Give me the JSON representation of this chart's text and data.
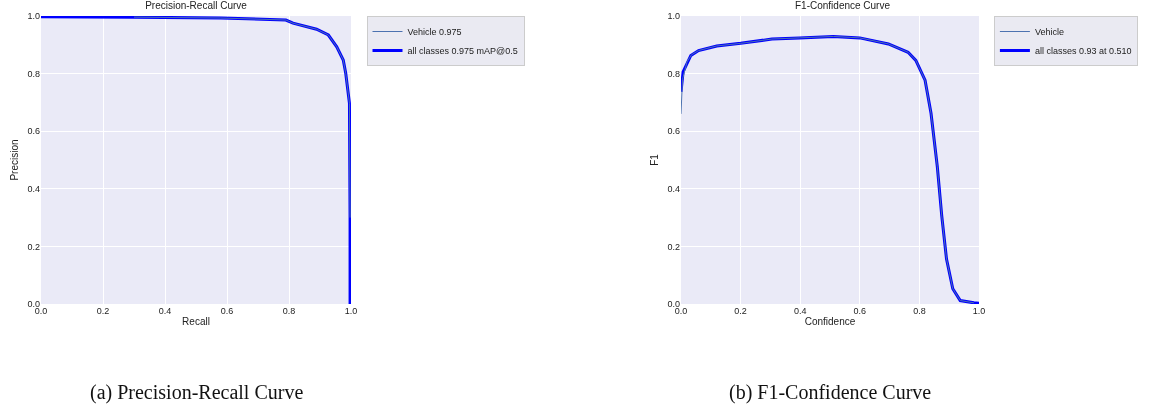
{
  "chart_data": [
    {
      "type": "line",
      "title": "Precision-Recall Curve",
      "xlabel": "Recall",
      "ylabel": "Precision",
      "annotations": [
        "(a) Precision-Recall Curve"
      ],
      "xlim": [
        0,
        1
      ],
      "ylim": [
        0,
        1
      ],
      "xticks": [
        {
          "value": 0,
          "label": "0.0"
        },
        {
          "value": 0.2,
          "label": "0.2"
        },
        {
          "value": 0.4,
          "label": "0.4"
        },
        {
          "value": 0.6,
          "label": "0.6"
        },
        {
          "value": 0.8,
          "label": "0.8"
        },
        {
          "value": 1,
          "label": "1.0"
        }
      ],
      "yticks": [
        {
          "value": 0,
          "label": "0.0"
        },
        {
          "value": 0.2,
          "label": "0.2"
        },
        {
          "value": 0.4,
          "label": "0.4"
        },
        {
          "value": 0.6,
          "label": "0.6"
        },
        {
          "value": 0.8,
          "label": "0.8"
        },
        {
          "value": 1,
          "label": "1.0"
        }
      ],
      "grid": true,
      "legend": "top right",
      "series": [
        {
          "name": "Vehicle 0.975",
          "color": "#4c72b0",
          "x": [
            0.3,
            0.58,
            0.79,
            0.813,
            0.889,
            0.927,
            0.954,
            0.975,
            0.983,
            0.995,
            0.997
          ],
          "values": [
            0.996,
            0.993,
            0.986,
            0.975,
            0.954,
            0.934,
            0.893,
            0.847,
            0.801,
            0.697,
            0.3
          ]
        },
        {
          "name": "all classes 0.975 mAP@0.5",
          "color": "#0000ff",
          "x": [
            0,
            0.3,
            0.58,
            0.79,
            0.813,
            0.889,
            0.927,
            0.954,
            0.975,
            0.983,
            0.995,
            0.997,
            0.997
          ],
          "values": [
            0.997,
            0.996,
            0.993,
            0.986,
            0.975,
            0.954,
            0.934,
            0.893,
            0.847,
            0.801,
            0.697,
            0.3,
            0
          ]
        }
      ]
    },
    {
      "type": "line",
      "title": "F1-Confidence Curve",
      "xlabel": "Confidence",
      "ylabel": "F1",
      "annotations": [
        "(b) F1-Confidence Curve"
      ],
      "xlim": [
        0,
        1
      ],
      "ylim": [
        0,
        1
      ],
      "xticks": [
        {
          "value": 0,
          "label": "0.0"
        },
        {
          "value": 0.2,
          "label": "0.2"
        },
        {
          "value": 0.4,
          "label": "0.4"
        },
        {
          "value": 0.6,
          "label": "0.6"
        },
        {
          "value": 0.8,
          "label": "0.8"
        },
        {
          "value": 1,
          "label": "1.0"
        }
      ],
      "yticks": [
        {
          "value": 0,
          "label": "0.0"
        },
        {
          "value": 0.2,
          "label": "0.2"
        },
        {
          "value": 0.4,
          "label": "0.4"
        },
        {
          "value": 0.6,
          "label": "0.6"
        },
        {
          "value": 0.8,
          "label": "0.8"
        },
        {
          "value": 1,
          "label": "1.0"
        }
      ],
      "grid": true,
      "legend": "top right",
      "series": [
        {
          "name": "Vehicle",
          "color": "#4c72b0",
          "x": [
            0,
            0.005,
            0.02,
            0.035,
            0.059,
            0.12,
            0.2,
            0.305,
            0.398,
            0.511,
            0.6,
            0.696,
            0.762,
            0.788,
            0.819,
            0.839,
            0.86,
            0.875,
            0.891,
            0.912,
            0.937,
            0.983
          ],
          "values": [
            0.66,
            0.78,
            0.84,
            0.865,
            0.88,
            0.896,
            0.905,
            0.92,
            0.924,
            0.929,
            0.924,
            0.903,
            0.874,
            0.846,
            0.777,
            0.662,
            0.478,
            0.306,
            0.156,
            0.053,
            0.012,
            0.004
          ]
        },
        {
          "name": "all classes 0.93 at 0.510",
          "color": "#0000ff",
          "x": [
            0,
            0.007,
            0.033,
            0.059,
            0.12,
            0.2,
            0.305,
            0.398,
            0.511,
            0.6,
            0.696,
            0.762,
            0.788,
            0.819,
            0.839,
            0.86,
            0.875,
            0.891,
            0.912,
            0.937,
            0.983,
            1
          ],
          "values": [
            0.737,
            0.806,
            0.863,
            0.88,
            0.896,
            0.905,
            0.92,
            0.924,
            0.929,
            0.924,
            0.903,
            0.874,
            0.846,
            0.777,
            0.662,
            0.478,
            0.306,
            0.156,
            0.053,
            0.012,
            0.004,
            0.003
          ]
        }
      ]
    }
  ]
}
